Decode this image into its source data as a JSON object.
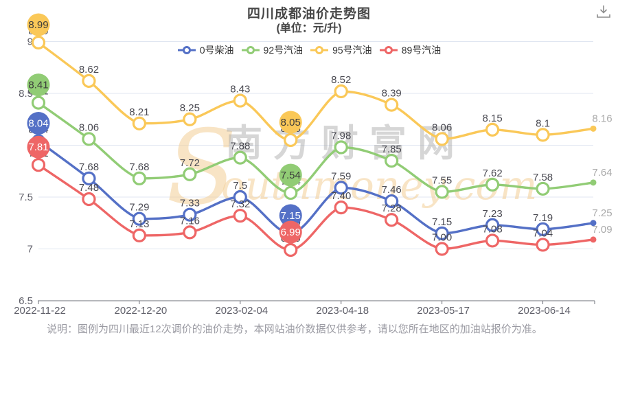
{
  "title": {
    "main": "四川成都油价走势图",
    "sub": "(单位：元/升)"
  },
  "toolbox": {
    "icon_name": "save-image-download-icon"
  },
  "note": {
    "text": "说明：图例为四川最近12次调价的油价走势，本网站油价数据仅供参考，请以您所在地区的加油站报价为准。"
  },
  "watermark": {
    "cn": "南方财富网",
    "en": "Southmoney.com"
  },
  "colors": {
    "blue": "#5470c6",
    "green": "#91cc75",
    "yellow": "#fac858",
    "red": "#ee6666",
    "grid": "#e0e6f1",
    "axis": "#6e7079",
    "tick_label": "#5e5e68",
    "data_label": "#4a4a52",
    "last_label": "#aaaaaa",
    "title": "#464646",
    "note": "#9b9ba3",
    "watermark_cn": "#a0a0a0",
    "watermark_en": "#f3cf96"
  },
  "chart_data": {
    "type": "line",
    "title": "四川成都油价走势图",
    "subtitle": "(单位：元/升)",
    "legend_position": "top-center",
    "gridlines": "horizontal",
    "num_points": 12,
    "ylim": [
      6.5,
      9
    ],
    "y_tick_values": [
      9,
      8.5,
      8,
      7.5,
      7,
      6.5
    ],
    "y_tick_labels": [
      "9",
      "8.5",
      "8",
      "7.5",
      "7",
      "6.5"
    ],
    "x_tick_labels": [
      "2022-11-22",
      "2022-12-20",
      "2023-02-04",
      "2023-04-18",
      "2023-05-17",
      "2023-06-14"
    ],
    "x_tick_point_indices": [
      0,
      2,
      4,
      6,
      8,
      10
    ],
    "series": [
      {
        "name": "0号柴油",
        "color": "#5470c6",
        "pin_text_color": "#ffffff",
        "values": [
          8.04,
          7.68,
          7.29,
          7.33,
          7.5,
          7.15,
          7.59,
          7.46,
          7.15,
          7.23,
          7.19,
          7.25
        ],
        "labels": [
          "8.04",
          "7.68",
          "7.29",
          "7.33",
          "7.5",
          "7.15",
          "7.59",
          "7.46",
          "7.15",
          "7.23",
          "7.19",
          "7.25"
        ],
        "pins": [
          {
            "type": "max",
            "index": 0,
            "label": "8.04"
          },
          {
            "type": "min",
            "index": 5,
            "label": "7.15"
          }
        ]
      },
      {
        "name": "92号汽油",
        "color": "#91cc75",
        "pin_text_color": "#3b3b3b",
        "values": [
          8.41,
          8.06,
          7.68,
          7.72,
          7.88,
          7.54,
          7.98,
          7.85,
          7.55,
          7.62,
          7.58,
          7.64
        ],
        "labels": [
          "8.41",
          "8.06",
          "7.68",
          "7.72",
          "7.88",
          "7.54",
          "7.98",
          "7.85",
          "7.55",
          "7.62",
          "7.58",
          "7.64"
        ],
        "pins": [
          {
            "type": "max",
            "index": 0,
            "label": "8.41"
          },
          {
            "type": "min",
            "index": 5,
            "label": "7.54"
          }
        ]
      },
      {
        "name": "95号汽油",
        "color": "#fac858",
        "pin_text_color": "#3b3b3b",
        "values": [
          8.99,
          8.62,
          8.21,
          8.25,
          8.43,
          8.05,
          8.52,
          8.39,
          8.06,
          8.15,
          8.1,
          8.16
        ],
        "labels": [
          "8.99",
          "8.62",
          "8.21",
          "8.25",
          "8.43",
          "8.05",
          "8.52",
          "8.39",
          "8.06",
          "8.15",
          "8.1",
          "8.16"
        ],
        "pins": [
          {
            "type": "max",
            "index": 0,
            "label": "8.99"
          },
          {
            "type": "min",
            "index": 5,
            "label": "8.05"
          }
        ]
      },
      {
        "name": "89号汽油",
        "color": "#ee6666",
        "pin_text_color": "#ffffff",
        "values": [
          7.81,
          7.48,
          7.13,
          7.16,
          7.32,
          6.99,
          7.4,
          7.28,
          7.0,
          7.08,
          7.04,
          7.09
        ],
        "labels": [
          "7.81",
          "7.48",
          "7.13",
          "7.16",
          "7.32",
          "6.99",
          "7.40",
          "7.28",
          "7.00",
          "7.08",
          "7.04",
          "7.09"
        ],
        "pins": [
          {
            "type": "max",
            "index": 0,
            "label": "7.81"
          },
          {
            "type": "min",
            "index": 5,
            "label": "6.99"
          }
        ]
      }
    ]
  }
}
